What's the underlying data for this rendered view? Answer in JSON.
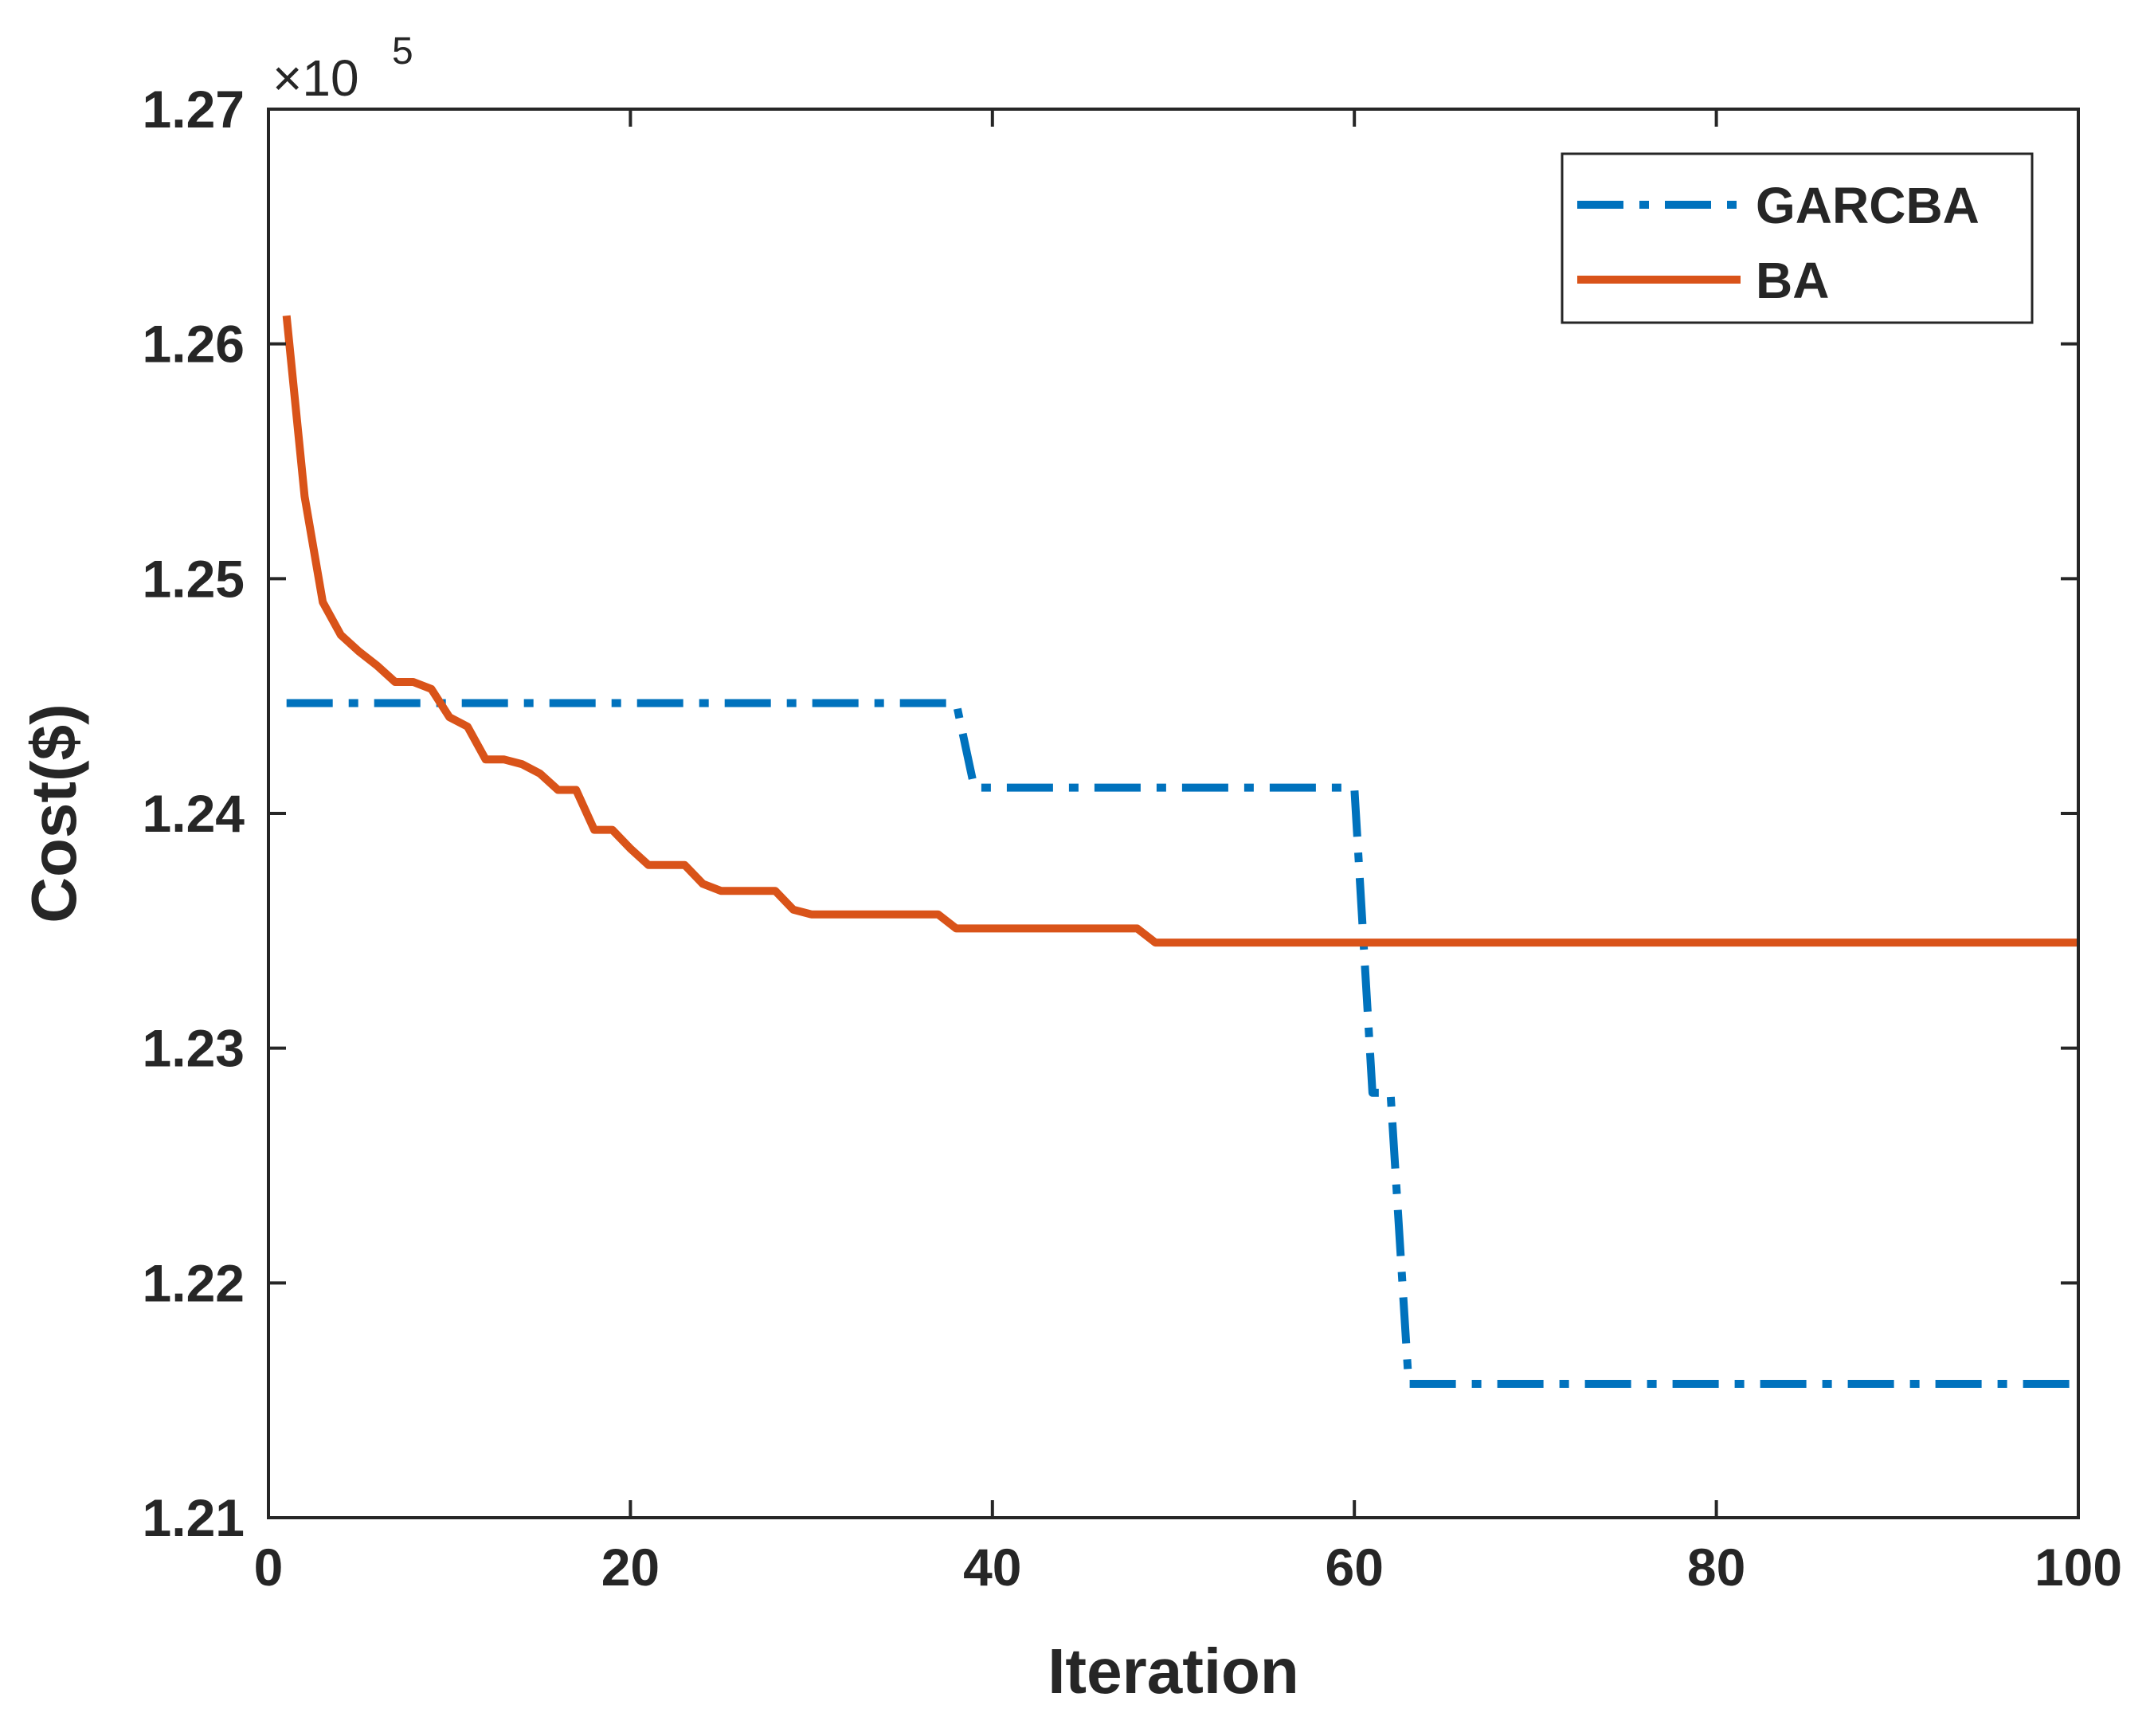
{
  "chart_data": {
    "type": "line",
    "title": "",
    "xlabel": "Iteration",
    "ylabel": "Cost($)",
    "y_exponent_label": "×10",
    "y_exponent_power": "5",
    "xlim": [
      0,
      100
    ],
    "ylim": [
      1.21,
      1.27
    ],
    "xticks": [
      0,
      20,
      40,
      60,
      80,
      100
    ],
    "xtick_labels": [
      "0",
      "20",
      "40",
      "60",
      "80",
      "100"
    ],
    "yticks": [
      1.21,
      1.22,
      1.23,
      1.24,
      1.25,
      1.26,
      1.27
    ],
    "ytick_labels": [
      "1.21",
      "1.22",
      "1.23",
      "1.24",
      "1.25",
      "1.26",
      "1.27"
    ],
    "grid": false,
    "legend_position": "top-right",
    "series": [
      {
        "name": "GARCBA",
        "color": "#0072BD",
        "style": "dashdot",
        "x": [
          1,
          38,
          39,
          60,
          61,
          62,
          63,
          100
        ],
        "y": [
          1.2447,
          1.2447,
          1.2411,
          1.2411,
          1.2281,
          1.2281,
          1.2157,
          1.2157
        ]
      },
      {
        "name": "BA",
        "color": "#D95319",
        "style": "solid",
        "x": [
          1,
          2,
          3,
          4,
          5,
          6,
          7,
          8,
          9,
          10,
          11,
          12,
          13,
          14,
          15,
          16,
          17,
          18,
          19,
          20,
          21,
          22,
          23,
          24,
          25,
          26,
          27,
          28,
          29,
          30,
          37,
          38,
          48,
          49,
          100
        ],
        "y": [
          1.2612,
          1.2535,
          1.249,
          1.2476,
          1.2469,
          1.2463,
          1.2456,
          1.2456,
          1.2453,
          1.2441,
          1.2437,
          1.2423,
          1.2423,
          1.2421,
          1.2417,
          1.241,
          1.241,
          1.2393,
          1.2393,
          1.2385,
          1.2378,
          1.2378,
          1.2378,
          1.237,
          1.2367,
          1.2367,
          1.2367,
          1.2367,
          1.2359,
          1.2357,
          1.2357,
          1.2351,
          1.2351,
          1.2345,
          1.2345
        ]
      }
    ]
  }
}
